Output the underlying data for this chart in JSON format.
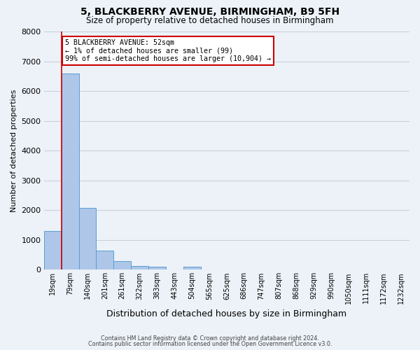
{
  "title": "5, BLACKBERRY AVENUE, BIRMINGHAM, B9 5FH",
  "subtitle": "Size of property relative to detached houses in Birmingham",
  "xlabel": "Distribution of detached houses by size in Birmingham",
  "ylabel": "Number of detached properties",
  "bar_labels": [
    "19sqm",
    "79sqm",
    "140sqm",
    "201sqm",
    "261sqm",
    "322sqm",
    "383sqm",
    "443sqm",
    "504sqm",
    "565sqm",
    "625sqm",
    "686sqm",
    "747sqm",
    "807sqm",
    "868sqm",
    "929sqm",
    "990sqm",
    "1050sqm",
    "1111sqm",
    "1172sqm",
    "1232sqm"
  ],
  "bar_values": [
    1300,
    6600,
    2075,
    650,
    300,
    120,
    100,
    0,
    100,
    0,
    0,
    0,
    0,
    0,
    0,
    0,
    0,
    0,
    0,
    0,
    0
  ],
  "bar_color": "#aec6e8",
  "bar_edge_color": "#5a9fd4",
  "ylim": [
    0,
    8000
  ],
  "yticks": [
    0,
    1000,
    2000,
    3000,
    4000,
    5000,
    6000,
    7000,
    8000
  ],
  "grid_color": "#c8d0dc",
  "bg_color": "#edf2f8",
  "annotation_box_text": "5 BLACKBERRY AVENUE: 52sqm\n← 1% of detached houses are smaller (99)\n99% of semi-detached houses are larger (10,904) →",
  "annotation_box_color": "#ffffff",
  "annotation_box_edge_color": "#cc0000",
  "red_line_x": 1.0,
  "footer_line1": "Contains HM Land Registry data © Crown copyright and database right 2024.",
  "footer_line2": "Contains public sector information licensed under the Open Government Licence v3.0."
}
